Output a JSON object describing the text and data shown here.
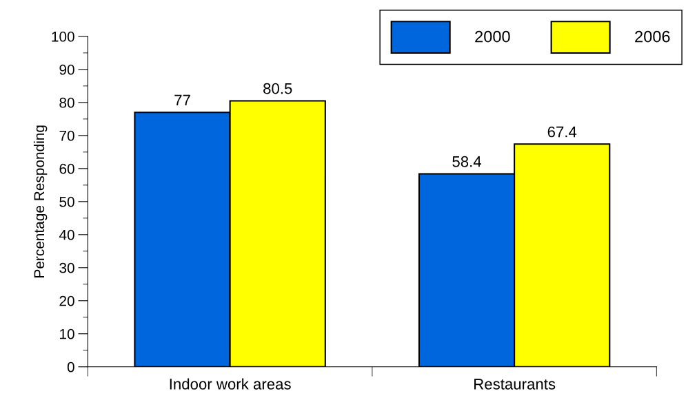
{
  "chart_data": {
    "type": "bar",
    "ylabel": "Percentage Responding",
    "categories": [
      "Indoor work areas",
      "Restaurants"
    ],
    "series": [
      {
        "name": "2000",
        "color": "#0066dd",
        "values": [
          77,
          58.4
        ]
      },
      {
        "name": "2006",
        "color": "#ffff00",
        "values": [
          80.5,
          67.4
        ]
      }
    ],
    "ylim": [
      0,
      100
    ],
    "yticks": [
      0,
      10,
      20,
      30,
      40,
      50,
      60,
      70,
      80,
      90,
      100
    ],
    "data_labels": true,
    "grid": false,
    "legend": "top right"
  }
}
